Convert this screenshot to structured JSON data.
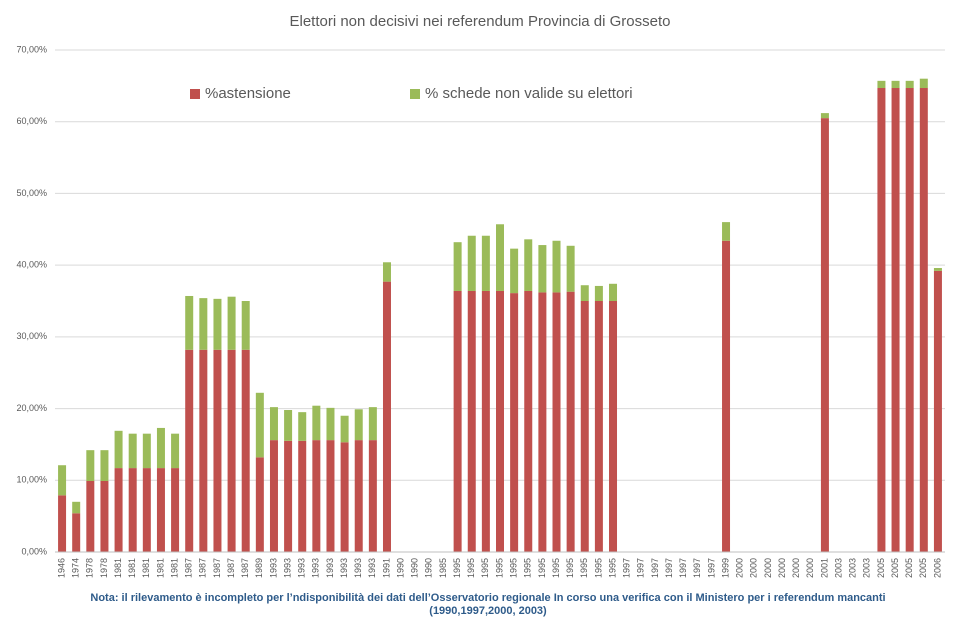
{
  "chart_data": {
    "type": "stacked_bar",
    "title": "Elettori non decisivi nei referendum Provincia di Grosseto",
    "categories": [
      "1946",
      "1974",
      "1978",
      "1978",
      "1981",
      "1981",
      "1981",
      "1981",
      "1981",
      "1987",
      "1987",
      "1987",
      "1987",
      "1987",
      "1989",
      "1993",
      "1993",
      "1993",
      "1993",
      "1993",
      "1993",
      "1993",
      "1993",
      "1991",
      "1990",
      "1990",
      "1990",
      "1985",
      "1995",
      "1995",
      "1995",
      "1995",
      "1995",
      "1995",
      "1995",
      "1995",
      "1995",
      "1995",
      "1995",
      "1995",
      "1997",
      "1997",
      "1997",
      "1997",
      "1997",
      "1997",
      "1997",
      "1999",
      "2000",
      "2000",
      "2000",
      "2000",
      "2000",
      "2000",
      "2001",
      "2003",
      "2003",
      "2003",
      "2005",
      "2005",
      "2005",
      "2005",
      "2006"
    ],
    "series": [
      {
        "name": "%astensione",
        "color": "#c0504d",
        "values": [
          7.9,
          5.4,
          9.9,
          9.9,
          11.7,
          11.7,
          11.7,
          11.7,
          11.7,
          28.2,
          28.2,
          28.2,
          28.2,
          28.2,
          13.2,
          15.6,
          15.5,
          15.5,
          15.6,
          15.6,
          15.3,
          15.6,
          15.6,
          37.7,
          null,
          null,
          null,
          null,
          36.4,
          36.4,
          36.4,
          36.4,
          36.1,
          36.4,
          36.2,
          36.2,
          36.3,
          35.0,
          35.0,
          35.0,
          null,
          null,
          null,
          null,
          null,
          null,
          null,
          43.4,
          null,
          null,
          null,
          null,
          null,
          null,
          60.5,
          null,
          null,
          null,
          64.7,
          64.7,
          64.7,
          64.7,
          39.2
        ]
      },
      {
        "name": "% schede non valide su elettori",
        "color": "#9bbb59",
        "values": [
          4.2,
          1.6,
          4.3,
          4.3,
          5.2,
          4.8,
          4.8,
          5.6,
          4.8,
          7.5,
          7.2,
          7.1,
          7.4,
          6.8,
          9.0,
          4.6,
          4.3,
          4.0,
          4.8,
          4.5,
          3.7,
          4.3,
          4.6,
          2.7,
          null,
          null,
          null,
          null,
          6.8,
          7.7,
          7.7,
          9.3,
          6.2,
          7.2,
          6.6,
          7.2,
          6.4,
          2.2,
          2.1,
          2.4,
          null,
          null,
          null,
          null,
          null,
          null,
          null,
          2.6,
          null,
          null,
          null,
          null,
          null,
          null,
          0.7,
          null,
          null,
          null,
          1.0,
          1.0,
          1.0,
          1.3,
          0.4
        ]
      }
    ],
    "ylim": [
      0,
      70
    ],
    "yticks": [
      {
        "value": 0,
        "label": "0,00%"
      },
      {
        "value": 10,
        "label": "10,00%"
      },
      {
        "value": 20,
        "label": "20,00%"
      },
      {
        "value": 30,
        "label": "30,00%"
      },
      {
        "value": 40,
        "label": "40,00%"
      },
      {
        "value": 50,
        "label": "50,00%"
      },
      {
        "value": 60,
        "label": "60,00%"
      },
      {
        "value": 70,
        "label": "70,00%"
      }
    ],
    "grid": true,
    "note": [
      "Nota: il rilevamento è incompleto per l’ndisponibilità dei dati dell’Osservatorio regionale In corso una verifica con il Ministero per i referendum mancanti",
      "(1990,1997,2000, 2003)"
    ]
  }
}
